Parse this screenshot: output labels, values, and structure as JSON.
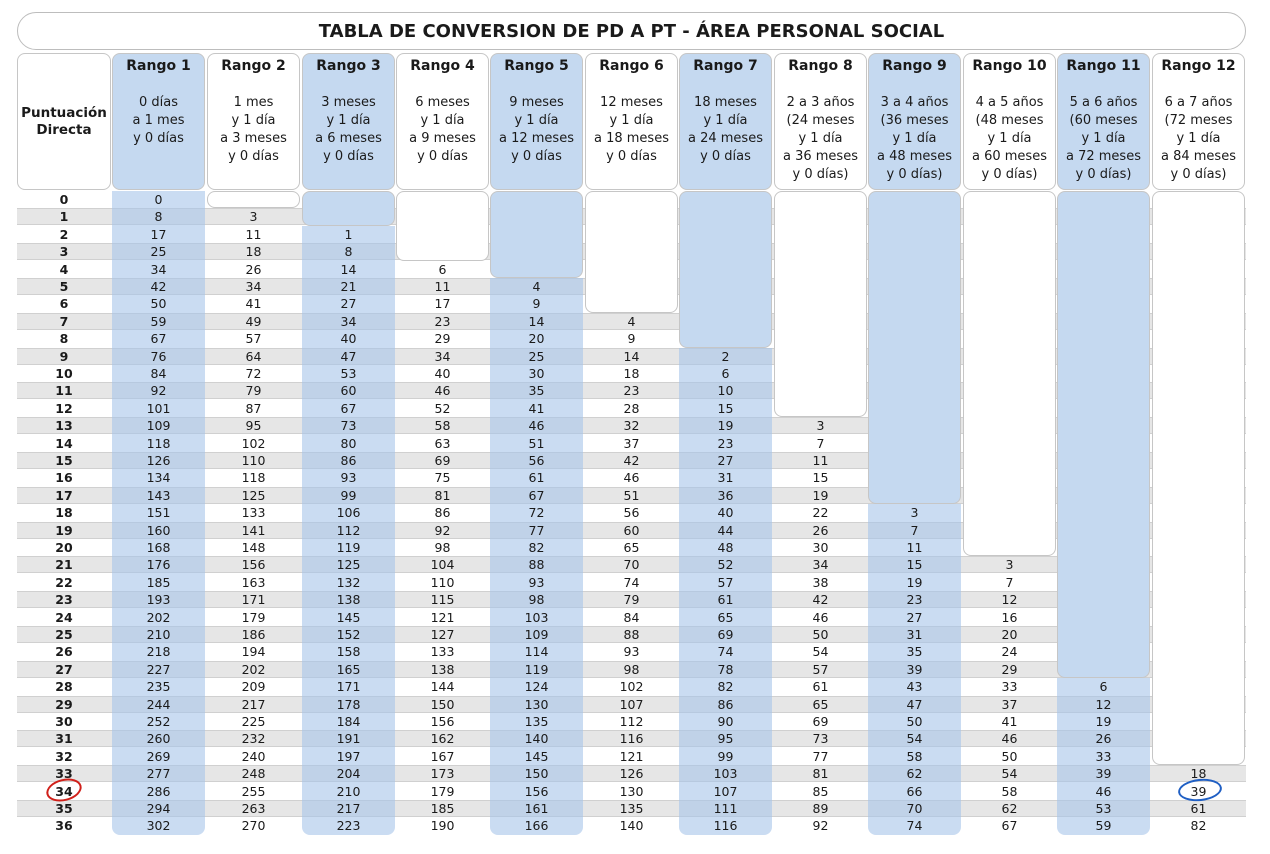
{
  "title": "TABLA DE CONVERSION DE PD A PT - ÁREA PERSONAL SOCIAL",
  "row_header": "Puntuación\nDirecta",
  "colors": {
    "blue_column": "#c5d9f0",
    "band": "#e6e6e6",
    "circle_red": "#d0201a",
    "circle_blue": "#1f5fc4"
  },
  "ranges": [
    {
      "name": "Rango 1",
      "desc": "0 días\na 1 mes\ny 0 días"
    },
    {
      "name": "Rango 2",
      "desc": "1 mes\ny 1 día\na 3 meses\ny 0 días"
    },
    {
      "name": "Rango 3",
      "desc": "3 meses\ny 1 día\na 6 meses\ny 0 días"
    },
    {
      "name": "Rango 4",
      "desc": "6 meses\ny 1 día\na 9 meses\ny 0 días"
    },
    {
      "name": "Rango 5",
      "desc": "9 meses\ny 1 día\na 12 meses\ny 0 días"
    },
    {
      "name": "Rango 6",
      "desc": "12 meses\ny 1 día\na 18 meses\ny 0 días"
    },
    {
      "name": "Rango 7",
      "desc": "18 meses\ny 1 día\na 24 meses\ny 0 días"
    },
    {
      "name": "Rango 8",
      "desc": "2 a 3 años\n(24 meses\ny 1 día\na 36 meses\ny 0 días)"
    },
    {
      "name": "Rango 9",
      "desc": "3 a 4 años\n(36 meses\ny 1 día\na 48 meses\ny 0 días)"
    },
    {
      "name": "Rango 10",
      "desc": "4 a 5 años\n(48 meses\ny 1 día\na 60 meses\ny 0 días)"
    },
    {
      "name": "Rango 11",
      "desc": "5 a 6 años\n(60 meses\ny 1 día\na 72 meses\ny 0 días)"
    },
    {
      "name": "Rango 12",
      "desc": "6 a 7 años\n(72 meses\ny 1 día\na 84 meses\ny 0 días)"
    }
  ],
  "rows": [
    {
      "pd": "0",
      "v": [
        "0",
        "",
        "",
        "",
        "",
        "",
        "",
        "",
        "",
        "",
        "",
        ""
      ]
    },
    {
      "pd": "1",
      "v": [
        "8",
        "3",
        "",
        "",
        "",
        "",
        "",
        "",
        "",
        "",
        "",
        ""
      ]
    },
    {
      "pd": "2",
      "v": [
        "17",
        "11",
        "1",
        "",
        "",
        "",
        "",
        "",
        "",
        "",
        "",
        ""
      ]
    },
    {
      "pd": "3",
      "v": [
        "25",
        "18",
        "8",
        "",
        "",
        "",
        "",
        "",
        "",
        "",
        "",
        ""
      ]
    },
    {
      "pd": "4",
      "v": [
        "34",
        "26",
        "14",
        "6",
        "",
        "",
        "",
        "",
        "",
        "",
        "",
        ""
      ]
    },
    {
      "pd": "5",
      "v": [
        "42",
        "34",
        "21",
        "11",
        "4",
        "",
        "",
        "",
        "",
        "",
        "",
        ""
      ]
    },
    {
      "pd": "6",
      "v": [
        "50",
        "41",
        "27",
        "17",
        "9",
        "",
        "",
        "",
        "",
        "",
        "",
        ""
      ]
    },
    {
      "pd": "7",
      "v": [
        "59",
        "49",
        "34",
        "23",
        "14",
        "4",
        "",
        "",
        "",
        "",
        "",
        ""
      ]
    },
    {
      "pd": "8",
      "v": [
        "67",
        "57",
        "40",
        "29",
        "20",
        "9",
        "",
        "",
        "",
        "",
        "",
        ""
      ]
    },
    {
      "pd": "9",
      "v": [
        "76",
        "64",
        "47",
        "34",
        "25",
        "14",
        "2",
        "",
        "",
        "",
        "",
        ""
      ]
    },
    {
      "pd": "10",
      "v": [
        "84",
        "72",
        "53",
        "40",
        "30",
        "18",
        "6",
        "",
        "",
        "",
        "",
        ""
      ]
    },
    {
      "pd": "11",
      "v": [
        "92",
        "79",
        "60",
        "46",
        "35",
        "23",
        "10",
        "",
        "",
        "",
        "",
        ""
      ]
    },
    {
      "pd": "12",
      "v": [
        "101",
        "87",
        "67",
        "52",
        "41",
        "28",
        "15",
        "",
        "",
        "",
        "",
        ""
      ]
    },
    {
      "pd": "13",
      "v": [
        "109",
        "95",
        "73",
        "58",
        "46",
        "32",
        "19",
        "3",
        "",
        "",
        "",
        ""
      ]
    },
    {
      "pd": "14",
      "v": [
        "118",
        "102",
        "80",
        "63",
        "51",
        "37",
        "23",
        "7",
        "",
        "",
        "",
        ""
      ]
    },
    {
      "pd": "15",
      "v": [
        "126",
        "110",
        "86",
        "69",
        "56",
        "42",
        "27",
        "11",
        "",
        "",
        "",
        ""
      ]
    },
    {
      "pd": "16",
      "v": [
        "134",
        "118",
        "93",
        "75",
        "61",
        "46",
        "31",
        "15",
        "",
        "",
        "",
        ""
      ]
    },
    {
      "pd": "17",
      "v": [
        "143",
        "125",
        "99",
        "81",
        "67",
        "51",
        "36",
        "19",
        "",
        "",
        "",
        ""
      ]
    },
    {
      "pd": "18",
      "v": [
        "151",
        "133",
        "106",
        "86",
        "72",
        "56",
        "40",
        "22",
        "3",
        "",
        "",
        ""
      ]
    },
    {
      "pd": "19",
      "v": [
        "160",
        "141",
        "112",
        "92",
        "77",
        "60",
        "44",
        "26",
        "7",
        "",
        "",
        ""
      ]
    },
    {
      "pd": "20",
      "v": [
        "168",
        "148",
        "119",
        "98",
        "82",
        "65",
        "48",
        "30",
        "11",
        "",
        "",
        ""
      ]
    },
    {
      "pd": "21",
      "v": [
        "176",
        "156",
        "125",
        "104",
        "88",
        "70",
        "52",
        "34",
        "15",
        "3",
        "",
        ""
      ]
    },
    {
      "pd": "22",
      "v": [
        "185",
        "163",
        "132",
        "110",
        "93",
        "74",
        "57",
        "38",
        "19",
        "7",
        "",
        ""
      ]
    },
    {
      "pd": "23",
      "v": [
        "193",
        "171",
        "138",
        "115",
        "98",
        "79",
        "61",
        "42",
        "23",
        "12",
        "",
        ""
      ]
    },
    {
      "pd": "24",
      "v": [
        "202",
        "179",
        "145",
        "121",
        "103",
        "84",
        "65",
        "46",
        "27",
        "16",
        "",
        ""
      ]
    },
    {
      "pd": "25",
      "v": [
        "210",
        "186",
        "152",
        "127",
        "109",
        "88",
        "69",
        "50",
        "31",
        "20",
        "",
        ""
      ]
    },
    {
      "pd": "26",
      "v": [
        "218",
        "194",
        "158",
        "133",
        "114",
        "93",
        "74",
        "54",
        "35",
        "24",
        "",
        ""
      ]
    },
    {
      "pd": "27",
      "v": [
        "227",
        "202",
        "165",
        "138",
        "119",
        "98",
        "78",
        "57",
        "39",
        "29",
        "",
        ""
      ]
    },
    {
      "pd": "28",
      "v": [
        "235",
        "209",
        "171",
        "144",
        "124",
        "102",
        "82",
        "61",
        "43",
        "33",
        "6",
        ""
      ]
    },
    {
      "pd": "29",
      "v": [
        "244",
        "217",
        "178",
        "150",
        "130",
        "107",
        "86",
        "65",
        "47",
        "37",
        "12",
        ""
      ]
    },
    {
      "pd": "30",
      "v": [
        "252",
        "225",
        "184",
        "156",
        "135",
        "112",
        "90",
        "69",
        "50",
        "41",
        "19",
        ""
      ]
    },
    {
      "pd": "31",
      "v": [
        "260",
        "232",
        "191",
        "162",
        "140",
        "116",
        "95",
        "73",
        "54",
        "46",
        "26",
        ""
      ]
    },
    {
      "pd": "32",
      "v": [
        "269",
        "240",
        "197",
        "167",
        "145",
        "121",
        "99",
        "77",
        "58",
        "50",
        "33",
        ""
      ]
    },
    {
      "pd": "33",
      "v": [
        "277",
        "248",
        "204",
        "173",
        "150",
        "126",
        "103",
        "81",
        "62",
        "54",
        "39",
        "18"
      ]
    },
    {
      "pd": "34",
      "v": [
        "286",
        "255",
        "210",
        "179",
        "156",
        "130",
        "107",
        "85",
        "66",
        "58",
        "46",
        "39"
      ]
    },
    {
      "pd": "35",
      "v": [
        "294",
        "263",
        "217",
        "185",
        "161",
        "135",
        "111",
        "89",
        "70",
        "62",
        "53",
        "61"
      ]
    },
    {
      "pd": "36",
      "v": [
        "302",
        "270",
        "223",
        "190",
        "166",
        "140",
        "116",
        "92",
        "74",
        "67",
        "59",
        "82"
      ]
    }
  ]
}
